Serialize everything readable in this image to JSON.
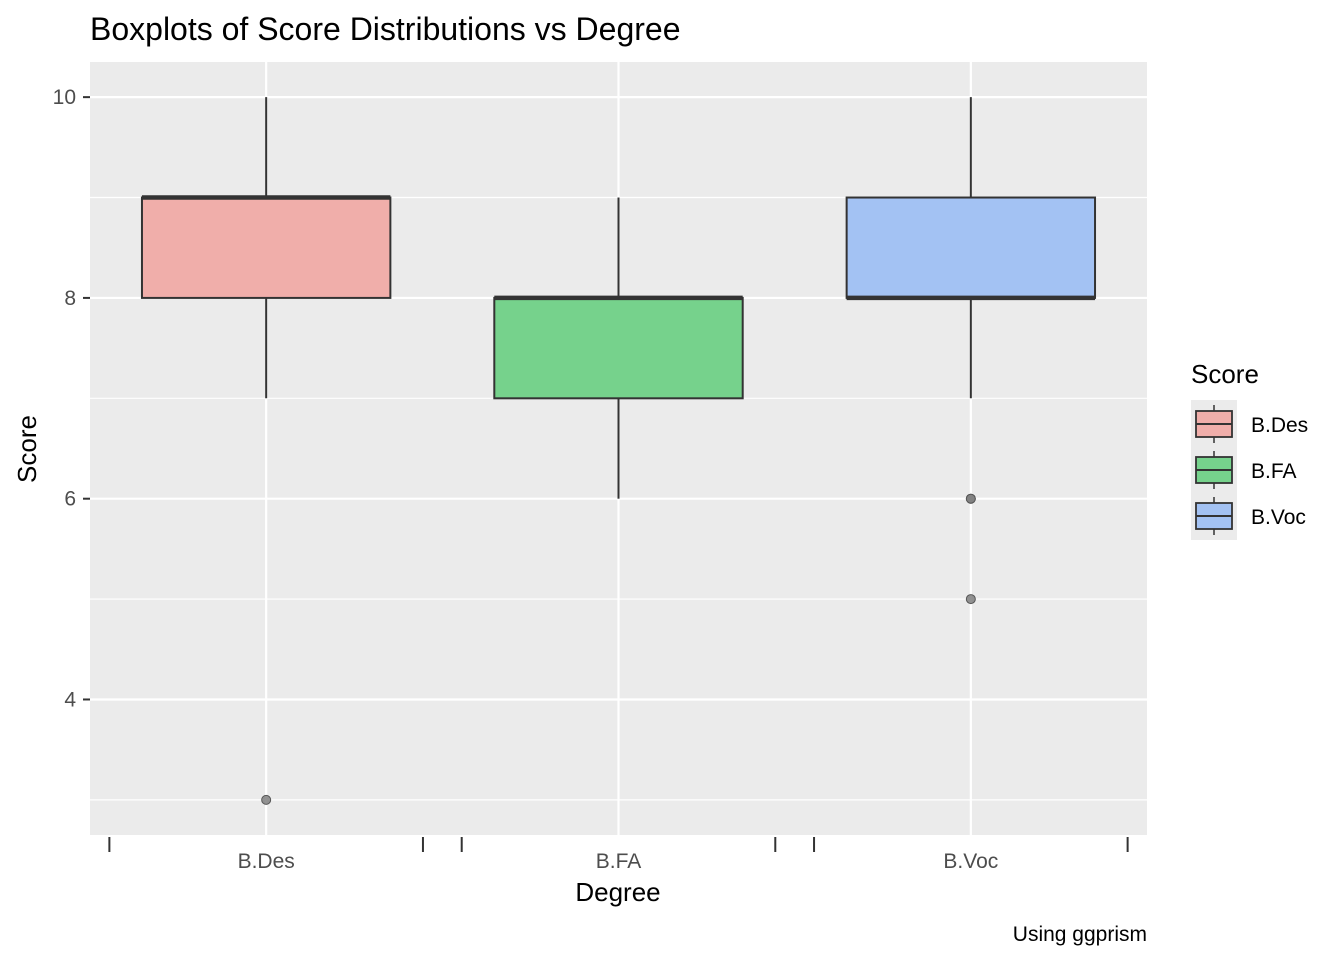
{
  "chart_data": {
    "type": "boxplot",
    "title": "Boxplots of Score Distributions vs Degree",
    "xlabel": "Degree",
    "ylabel": "Score",
    "caption": "Using ggprism",
    "categories": [
      "B.Des",
      "B.FA",
      "B.Voc"
    ],
    "ylim": [
      2.65,
      10.35
    ],
    "yticks": [
      4,
      6,
      8,
      10
    ],
    "grid": true,
    "legend": {
      "title": "Score",
      "position": "right",
      "entries": [
        "B.Des",
        "B.FA",
        "B.Voc"
      ]
    },
    "colors": {
      "B.Des": "#f0aeaa",
      "B.FA": "#76d28c",
      "B.Voc": "#a3c2f3",
      "panel": "#ebebeb",
      "grid": "#ffffff",
      "box_stroke": "#333333",
      "outlier": "#7f7f7f"
    },
    "boxes": [
      {
        "category": "B.Des",
        "min": 7,
        "q1": 8,
        "median": 9,
        "q3": 9,
        "max": 10,
        "outliers": [
          3
        ]
      },
      {
        "category": "B.FA",
        "min": 6,
        "q1": 7,
        "median": 8,
        "q3": 8,
        "max": 9,
        "outliers": []
      },
      {
        "category": "B.Voc",
        "min": 7,
        "q1": 8,
        "median": 8,
        "q3": 9,
        "max": 10,
        "outliers": [
          6,
          6,
          5
        ]
      }
    ]
  }
}
